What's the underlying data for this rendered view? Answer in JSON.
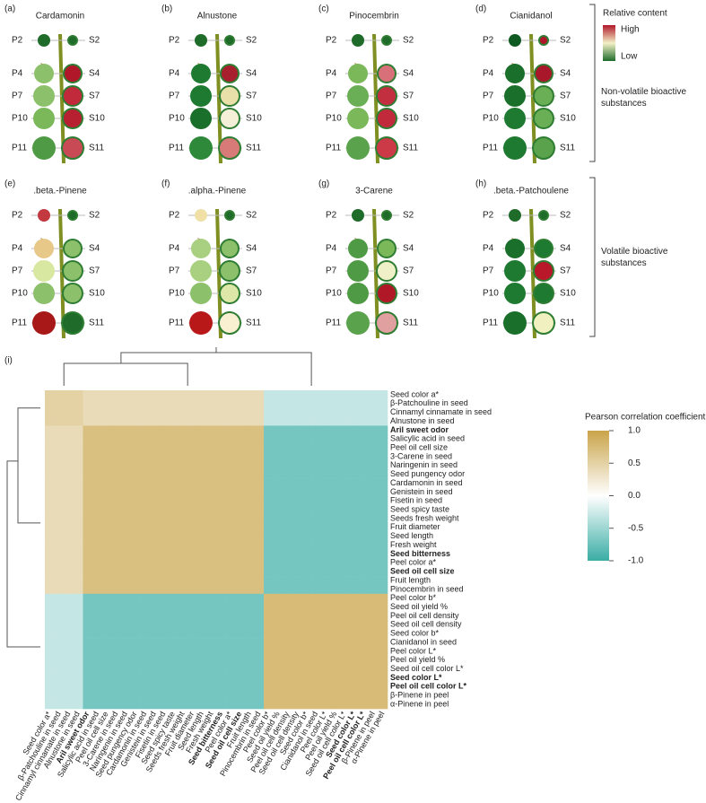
{
  "stages_p": [
    "P2",
    "P4",
    "P7",
    "P10",
    "P11"
  ],
  "stages_s": [
    "S2",
    "S4",
    "S7",
    "S10",
    "S11"
  ],
  "panels": [
    {
      "tag": "(a)",
      "title": "Cardamonin",
      "p": [
        "#1e6b2a",
        "#8cc06a",
        "#8cc06a",
        "#7bb85a",
        "#4f9a45"
      ],
      "s": [
        "#1e6b2a",
        "#b0182a",
        "#c02a3a",
        "#b62030",
        "#c84a55"
      ]
    },
    {
      "tag": "(b)",
      "title": "Alnustone",
      "p": [
        "#1e6b2a",
        "#1e7a30",
        "#1e7a30",
        "#1a6f2b",
        "#2e8a3a"
      ],
      "s": [
        "#1e6b2a",
        "#a8202e",
        "#e8e0a8",
        "#f4f0d8",
        "#d87a78"
      ]
    },
    {
      "tag": "(c)",
      "title": "Pinocembrin",
      "p": [
        "#1e6b2a",
        "#7bb85a",
        "#6aae55",
        "#7bb85a",
        "#5aa34c"
      ],
      "s": [
        "#1e6b2a",
        "#d8707a",
        "#c23040",
        "#c02a3a",
        "#cc3a48"
      ]
    },
    {
      "tag": "(d)",
      "title": "Cianidanol",
      "p": [
        "#0f5a22",
        "#1a6f2b",
        "#1a6f2b",
        "#1e7a30",
        "#1e7a30"
      ],
      "s": [
        "#b0182a",
        "#a8182a",
        "#6aae55",
        "#6aae55",
        "#5aa34c"
      ]
    },
    {
      "tag": "(e)",
      "title": ".beta.-Pinene",
      "p": [
        "#c23a40",
        "#e8c888",
        "#d8e8a0",
        "#8cc06a",
        "#a81818"
      ],
      "s": [
        "#1e6b2a",
        "#8cc06a",
        "#8cc06a",
        "#8cc06a",
        "#1e6b2a"
      ]
    },
    {
      "tag": "(f)",
      "title": ".alpha.-Pinene",
      "p": [
        "#f0e0a8",
        "#a8d080",
        "#a8d080",
        "#8cc06a",
        "#b81818"
      ],
      "s": [
        "#1e6b2a",
        "#8cc06a",
        "#8cc06a",
        "#dde8a8",
        "#f8f0d0"
      ]
    },
    {
      "tag": "(g)",
      "title": "3-Carene",
      "p": [
        "#1e6b2a",
        "#4f9a45",
        "#4f9a45",
        "#4f9a45",
        "#5aa34c"
      ],
      "s": [
        "#1e6b2a",
        "#7bb85a",
        "#f0f0c8",
        "#b01828",
        "#e0a0a0"
      ]
    },
    {
      "tag": "(h)",
      "title": ".beta.-Patchoulene",
      "p": [
        "#1e6b2a",
        "#1a6f2b",
        "#1e7a30",
        "#1e7a30",
        "#1a6f2b"
      ],
      "s": [
        "#1e6b2a",
        "#1e7a30",
        "#b8182a",
        "#1e7a30",
        "#f0f0c0"
      ]
    }
  ],
  "legend": {
    "title": "Relative content",
    "high": "High",
    "low": "Low"
  },
  "groups": [
    "Non-volatile bioactive substances",
    "Volatile bioactive substances"
  ],
  "heatmap": {
    "tag": "(i)",
    "legend_title": "Pearson correlation coefficient",
    "ticks": [
      {
        "value": 1,
        "label": "1.0"
      },
      {
        "value": 0.5,
        "label": "0.5"
      },
      {
        "value": 0,
        "label": "0.0"
      },
      {
        "value": -0.5,
        "label": "-0.5"
      },
      {
        "value": -1,
        "label": "-1.0"
      }
    ],
    "blocks": [
      [
        0.5,
        0.4,
        -0.3
      ],
      [
        0.4,
        0.7,
        -0.7
      ],
      [
        -0.3,
        -0.7,
        0.75
      ]
    ],
    "rows": [
      {
        "label": "Seed color a*",
        "cluster": 0
      },
      {
        "label": "β-Patchouline in seed",
        "cluster": 0
      },
      {
        "label": "Cinnamyl cinnamate in seed",
        "cluster": 0
      },
      {
        "label": "Alnustone in seed",
        "cluster": 0
      },
      {
        "label": "Aril sweet odor",
        "cluster": 1,
        "style": "bold"
      },
      {
        "label": "Salicylic acid in seed",
        "cluster": 1,
        "style": "red"
      },
      {
        "label": "Peel oil cell size",
        "cluster": 1
      },
      {
        "label": "3-Carene in seed",
        "cluster": 1,
        "style": "red"
      },
      {
        "label": "Naringenin in seed",
        "cluster": 1,
        "style": "red"
      },
      {
        "label": "Seed pungency odor",
        "cluster": 1
      },
      {
        "label": "Cardamonin in seed",
        "cluster": 1,
        "style": "red"
      },
      {
        "label": "Genistein in seed",
        "cluster": 1,
        "style": "red"
      },
      {
        "label": "Fisetin in seed",
        "cluster": 1,
        "style": "red"
      },
      {
        "label": "Seed spicy taste",
        "cluster": 1
      },
      {
        "label": "Seeds fresh weight",
        "cluster": 1
      },
      {
        "label": "Fruit diameter",
        "cluster": 1
      },
      {
        "label": "Seed length",
        "cluster": 1
      },
      {
        "label": "Fresh weight",
        "cluster": 1
      },
      {
        "label": "Seed bitterness",
        "cluster": 1,
        "style": "bold"
      },
      {
        "label": "Peel color a*",
        "cluster": 1
      },
      {
        "label": "Seed oil cell size",
        "cluster": 1,
        "style": "bold"
      },
      {
        "label": "Fruit length",
        "cluster": 1
      },
      {
        "label": "Pinocembrin in seed",
        "cluster": 1,
        "style": "red"
      },
      {
        "label": "Peel color b*",
        "cluster": 2
      },
      {
        "label": "Seed oil yield %",
        "cluster": 2
      },
      {
        "label": "Peel oil cell density",
        "cluster": 2
      },
      {
        "label": "Seed oil cell density",
        "cluster": 2
      },
      {
        "label": "Seed color b*",
        "cluster": 2
      },
      {
        "label": "Cianidanol in seed",
        "cluster": 2,
        "style": "red"
      },
      {
        "label": "Peel color L*",
        "cluster": 2
      },
      {
        "label": "Peel oil yield %",
        "cluster": 2
      },
      {
        "label": "Seed oil cell color L*",
        "cluster": 2
      },
      {
        "label": "Seed color L*",
        "cluster": 2,
        "style": "bold"
      },
      {
        "label": "Peel oil cell color L*",
        "cluster": 2,
        "style": "bold"
      },
      {
        "label": "β-Pinene in peel",
        "cluster": 2,
        "style": "red"
      },
      {
        "label": "α-Pinene in peel",
        "cluster": 2,
        "style": "red"
      }
    ]
  }
}
